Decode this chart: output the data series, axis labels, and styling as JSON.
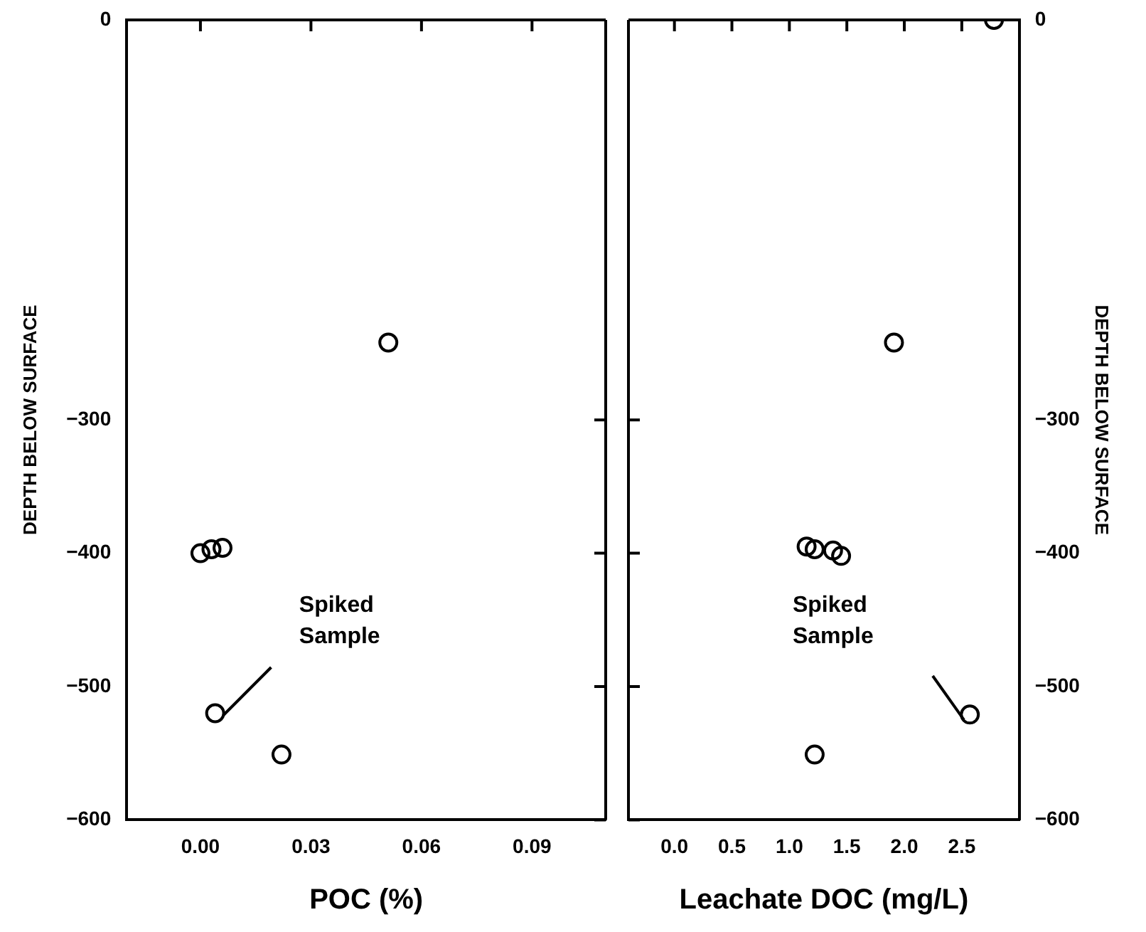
{
  "chart_data": [
    {
      "type": "scatter",
      "xlabel": "POC (%)",
      "ylabel": "DEPTH BELOW SURFACE",
      "series": [
        {
          "color": "#000000",
          "x": [
            0.051,
            0.0,
            0.003,
            0.006,
            0.004,
            0.022
          ],
          "values": [
            -242,
            -400,
            -397,
            -396,
            -520,
            -551
          ]
        }
      ],
      "xlim": [
        -0.02,
        0.11
      ],
      "xticks": [
        {
          "value": 0,
          "label": "0.00"
        },
        0.03,
        0.06,
        0.09
      ],
      "ylim": [
        -600,
        0
      ],
      "yticks": [
        0,
        -300,
        -400,
        -500,
        -600
      ],
      "annotations": [
        "Spiked Sample"
      ],
      "marker": "circle",
      "grid": false,
      "legend": false
    },
    {
      "type": "scatter",
      "xlabel": "Leachate DOC (mg/L)",
      "y2label": "DEPTH BELOW SURFACE",
      "series": [
        {
          "color": "#000000",
          "axis": "y2",
          "x": [
            2.78,
            1.91,
            1.15,
            1.22,
            1.38,
            1.45,
            2.57,
            1.22
          ],
          "values": [
            0,
            -242,
            -395,
            -397,
            -398,
            -402,
            -521,
            -551
          ]
        }
      ],
      "xlim": [
        -0.4,
        3.0
      ],
      "xticks": [
        {
          "value": 0,
          "label": "0.0"
        },
        0.5,
        {
          "value": 1,
          "label": "1.0"
        },
        1.5,
        {
          "value": 2,
          "label": "2.0"
        },
        2.5
      ],
      "y2lim": [
        -600,
        0
      ],
      "y2ticks": [
        0,
        -300,
        -400,
        -500,
        -600
      ],
      "annotations": [
        "Spiked Sample"
      ],
      "marker": "circle",
      "grid": false,
      "legend": false
    }
  ]
}
